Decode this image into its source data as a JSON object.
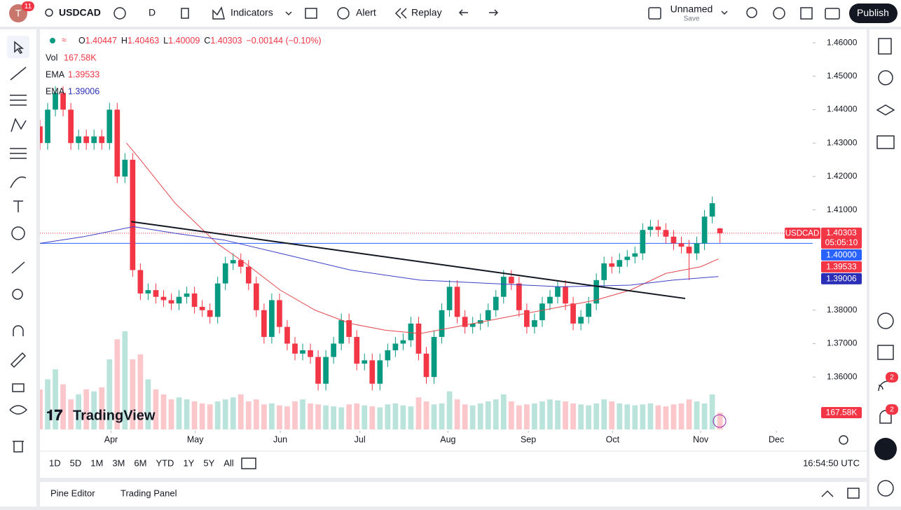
{
  "topbar": {
    "avatar_badge": "11",
    "symbol": "USDCAD",
    "interval": "D",
    "indicators": "Indicators",
    "alert": "Alert",
    "replay": "Replay",
    "layout_name": "Unnamed",
    "layout_save": "Save",
    "publish": "Publish"
  },
  "legend": {
    "ohlc": [
      {
        "label": "O",
        "value": "1.40447"
      },
      {
        "label": "H",
        "value": "1.40463"
      },
      {
        "label": "L",
        "value": "1.40009"
      },
      {
        "label": "C",
        "value": "1.40303"
      }
    ],
    "change": "−0.00144 (−0.10%)",
    "vol": {
      "label": "Vol",
      "value": "167.58K"
    },
    "ema1": {
      "label": "EMA",
      "value": "1.39533"
    },
    "ema2": {
      "label": "EMA",
      "value": "1.39006"
    }
  },
  "chart_data": {
    "type": "candlestick",
    "up_color": "#089981",
    "down_color": "#f23645",
    "candles": [
      [
        1.435,
        1.437,
        1.428,
        1.43
      ],
      [
        1.43,
        1.442,
        1.428,
        1.44
      ],
      [
        1.44,
        1.447,
        1.438,
        1.445
      ],
      [
        1.445,
        1.447,
        1.438,
        1.44
      ],
      [
        1.44,
        1.442,
        1.428,
        1.43
      ],
      [
        1.43,
        1.434,
        1.428,
        1.432
      ],
      [
        1.432,
        1.434,
        1.428,
        1.43
      ],
      [
        1.43,
        1.434,
        1.428,
        1.432
      ],
      [
        1.432,
        1.434,
        1.428,
        1.43
      ],
      [
        1.43,
        1.442,
        1.428,
        1.44
      ],
      [
        1.44,
        1.442,
        1.418,
        1.42
      ],
      [
        1.42,
        1.427,
        1.418,
        1.425
      ],
      [
        1.425,
        1.427,
        1.39,
        1.392
      ],
      [
        1.392,
        1.394,
        1.383,
        1.385
      ],
      [
        1.385,
        1.388,
        1.383,
        1.386
      ],
      [
        1.386,
        1.388,
        1.382,
        1.384
      ],
      [
        1.384,
        1.386,
        1.381,
        1.383
      ],
      [
        1.383,
        1.385,
        1.38,
        1.382
      ],
      [
        1.382,
        1.386,
        1.38,
        1.384
      ],
      [
        1.384,
        1.387,
        1.382,
        1.385
      ],
      [
        1.385,
        1.387,
        1.379,
        1.381
      ],
      [
        1.381,
        1.383,
        1.378,
        1.38
      ],
      [
        1.38,
        1.382,
        1.376,
        1.378
      ],
      [
        1.378,
        1.39,
        1.376,
        1.388
      ],
      [
        1.388,
        1.396,
        1.386,
        1.394
      ],
      [
        1.394,
        1.397,
        1.392,
        1.395
      ],
      [
        1.395,
        1.397,
        1.391,
        1.393
      ],
      [
        1.393,
        1.395,
        1.386,
        1.388
      ],
      [
        1.388,
        1.39,
        1.378,
        1.38
      ],
      [
        1.38,
        1.382,
        1.37,
        1.372
      ],
      [
        1.372,
        1.385,
        1.37,
        1.383
      ],
      [
        1.383,
        1.385,
        1.373,
        1.375
      ],
      [
        1.375,
        1.377,
        1.368,
        1.37
      ],
      [
        1.37,
        1.372,
        1.365,
        1.367
      ],
      [
        1.367,
        1.37,
        1.365,
        1.368
      ],
      [
        1.368,
        1.37,
        1.364,
        1.366
      ],
      [
        1.366,
        1.368,
        1.356,
        1.358
      ],
      [
        1.358,
        1.368,
        1.356,
        1.366
      ],
      [
        1.366,
        1.372,
        1.364,
        1.37
      ],
      [
        1.37,
        1.379,
        1.368,
        1.377
      ],
      [
        1.377,
        1.379,
        1.37,
        1.372
      ],
      [
        1.372,
        1.374,
        1.362,
        1.364
      ],
      [
        1.364,
        1.367,
        1.362,
        1.365
      ],
      [
        1.365,
        1.367,
        1.356,
        1.358
      ],
      [
        1.358,
        1.367,
        1.356,
        1.365
      ],
      [
        1.365,
        1.37,
        1.363,
        1.368
      ],
      [
        1.368,
        1.372,
        1.366,
        1.37
      ],
      [
        1.37,
        1.373,
        1.368,
        1.371
      ],
      [
        1.371,
        1.378,
        1.369,
        1.376
      ],
      [
        1.376,
        1.378,
        1.365,
        1.367
      ],
      [
        1.367,
        1.369,
        1.358,
        1.36
      ],
      [
        1.36,
        1.374,
        1.358,
        1.372
      ],
      [
        1.372,
        1.382,
        1.37,
        1.38
      ],
      [
        1.38,
        1.389,
        1.378,
        1.387
      ],
      [
        1.387,
        1.389,
        1.376,
        1.378
      ],
      [
        1.378,
        1.38,
        1.373,
        1.375
      ],
      [
        1.375,
        1.378,
        1.373,
        1.376
      ],
      [
        1.376,
        1.379,
        1.374,
        1.377
      ],
      [
        1.377,
        1.382,
        1.375,
        1.38
      ],
      [
        1.38,
        1.386,
        1.378,
        1.384
      ],
      [
        1.384,
        1.392,
        1.382,
        1.39
      ],
      [
        1.39,
        1.392,
        1.386,
        1.388
      ],
      [
        1.388,
        1.39,
        1.378,
        1.38
      ],
      [
        1.38,
        1.382,
        1.373,
        1.375
      ],
      [
        1.375,
        1.379,
        1.373,
        1.377
      ],
      [
        1.377,
        1.384,
        1.375,
        1.382
      ],
      [
        1.382,
        1.386,
        1.38,
        1.384
      ],
      [
        1.384,
        1.389,
        1.382,
        1.387
      ],
      [
        1.387,
        1.389,
        1.38,
        1.382
      ],
      [
        1.382,
        1.384,
        1.374,
        1.376
      ],
      [
        1.376,
        1.38,
        1.374,
        1.378
      ],
      [
        1.378,
        1.384,
        1.376,
        1.382
      ],
      [
        1.382,
        1.391,
        1.38,
        1.389
      ],
      [
        1.389,
        1.396,
        1.387,
        1.394
      ],
      [
        1.394,
        1.396,
        1.391,
        1.393
      ],
      [
        1.393,
        1.397,
        1.391,
        1.395
      ],
      [
        1.395,
        1.398,
        1.393,
        1.396
      ],
      [
        1.396,
        1.399,
        1.394,
        1.397
      ],
      [
        1.397,
        1.406,
        1.395,
        1.404
      ],
      [
        1.404,
        1.407,
        1.402,
        1.405
      ],
      [
        1.405,
        1.407,
        1.402,
        1.404
      ],
      [
        1.404,
        1.406,
        1.4,
        1.402
      ],
      [
        1.402,
        1.404,
        1.398,
        1.4
      ],
      [
        1.4,
        1.402,
        1.397,
        1.399
      ],
      [
        1.399,
        1.401,
        1.389,
        1.397
      ],
      [
        1.397,
        1.402,
        1.395,
        1.4
      ],
      [
        1.4,
        1.41,
        1.398,
        1.408
      ],
      [
        1.408,
        1.414,
        1.406,
        1.412
      ],
      [
        1.40447,
        1.40463,
        1.40009,
        1.40303
      ]
    ],
    "volume": [
      400,
      500,
      600,
      450,
      300,
      350,
      400,
      380,
      420,
      700,
      900,
      980,
      700,
      750,
      500,
      400,
      350,
      300,
      320,
      300,
      280,
      260,
      250,
      280,
      300,
      320,
      350,
      280,
      300,
      250,
      260,
      240,
      230,
      280,
      300,
      260,
      250,
      240,
      230,
      220,
      250,
      260,
      240,
      230,
      220,
      250,
      260,
      240,
      230,
      320,
      280,
      250,
      260,
      380,
      300,
      250,
      240,
      260,
      280,
      300,
      350,
      280,
      240,
      250,
      260,
      280,
      300,
      290,
      280,
      260,
      250,
      240,
      260,
      300,
      280,
      260,
      250,
      240,
      250,
      260,
      240,
      230,
      250,
      260,
      300,
      280,
      260,
      350,
      167.58
    ],
    "volume_badge": "167.58K",
    "xlim": [
      0,
      100
    ],
    "ylim": [
      1.3439,
      1.464
    ],
    "xticks": [
      {
        "value": 9.2,
        "label": "Apr"
      },
      {
        "value": 20.1,
        "label": "May"
      },
      {
        "value": 31.1,
        "label": "Jun"
      },
      {
        "value": 41.4,
        "label": "Jul"
      },
      {
        "value": 52.8,
        "label": "Aug"
      },
      {
        "value": 63.2,
        "label": "Sep"
      },
      {
        "value": 74.1,
        "label": "Oct"
      },
      {
        "value": 85.5,
        "label": "Nov"
      },
      {
        "value": 95.3,
        "label": "Dec"
      }
    ],
    "yticks": [
      {
        "value": 1.46,
        "label": "1.46000"
      },
      {
        "value": 1.45,
        "label": "1.45000"
      },
      {
        "value": 1.44,
        "label": "1.44000"
      },
      {
        "value": 1.43,
        "label": "1.43000"
      },
      {
        "value": 1.42,
        "label": "1.42000"
      },
      {
        "value": 1.41,
        "label": "1.41000"
      },
      {
        "value": 1.38,
        "label": "1.38000"
      },
      {
        "value": 1.37,
        "label": "1.37000"
      },
      {
        "value": 1.36,
        "label": "1.36000"
      }
    ],
    "ema_fast": {
      "color": "#e5484d",
      "x": [
        11.2,
        13.0,
        17.5,
        22.9,
        26.6,
        31.1,
        35.6,
        40.2,
        44.7,
        49.2,
        53.8,
        58.3,
        62.8,
        67.4,
        71.9,
        76.4,
        81.0,
        85.5,
        87.8
      ],
      "values": [
        1.43,
        1.425,
        1.412,
        1.4,
        1.394,
        1.386,
        1.38,
        1.376,
        1.374,
        1.373,
        1.375,
        1.377,
        1.379,
        1.381,
        1.383,
        1.386,
        1.391,
        1.393,
        1.39533
      ]
    },
    "ema_slow": {
      "color": "#3d3fc7",
      "x": [
        0,
        5.7,
        12.1,
        17.5,
        23.8,
        31.1,
        40.2,
        49.2,
        58.3,
        67.4,
        76.4,
        81.9,
        87.8
      ],
      "values": [
        1.4,
        1.402,
        1.405,
        1.403,
        1.401,
        1.397,
        1.392,
        1.389,
        1.388,
        1.387,
        1.3875,
        1.389,
        1.39006
      ]
    },
    "trendline": {
      "x": [
        11.8,
        83.5
      ],
      "values": [
        1.4065,
        1.3835
      ]
    },
    "hline": 1.4,
    "hline_color": "#2962ff",
    "symbol_badge": "USDCAD",
    "countdown": "05:05:10",
    "price_badges": [
      {
        "value": 1.4,
        "label": "1.40000",
        "color": "#2962ff"
      },
      {
        "value": 1.39533,
        "label": "1.39533",
        "color": "#f23645"
      },
      {
        "value": 1.39006,
        "label": "1.39006",
        "color": "#2b2fb8"
      }
    ]
  },
  "brand": "TradingView",
  "ranges": [
    "1D",
    "5D",
    "1M",
    "3M",
    "6M",
    "YTD",
    "1Y",
    "5Y",
    "All"
  ],
  "clock": "16:54:50 UTC",
  "bottom": [
    "Pine Editor",
    "Trading Panel"
  ],
  "right_badges": [
    "2",
    "2"
  ]
}
